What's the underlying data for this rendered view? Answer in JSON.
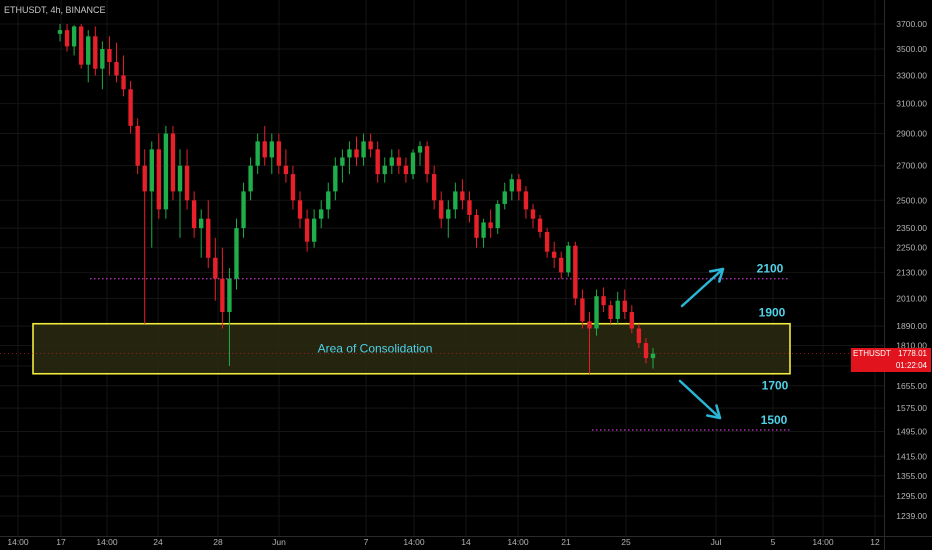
{
  "header": {
    "symbol": "ETHUSDT",
    "interval": "4h",
    "exchange": "BINANCE",
    "title": "ETHUSDT, 4h, BINANCE"
  },
  "price_tag": {
    "symbol": "ETHUSDT",
    "price": "1778.01",
    "countdown": "01:22:04",
    "color": "#e1141e"
  },
  "colors": {
    "background": "#000000",
    "up_candle": "#1fae4a",
    "down_candle": "#e8202a",
    "zone_border": "#f2ec3c",
    "zone_fill": "#2a2a12",
    "level_label": "#4fd1e8",
    "dotted_line": "#c238c9",
    "arrow": "#2ab6d6",
    "axis_text": "#b4b4b4"
  },
  "chart_data": {
    "type": "candlestick",
    "symbol": "ETHUSDT",
    "ylabel": "",
    "xlabel": "",
    "x_tick_labels": [
      "14:00",
      "17",
      "14:00",
      "24",
      "28",
      "Jun",
      "7",
      "14:00",
      "14",
      "14:00",
      "21",
      "25",
      "Jul",
      "5",
      "14:00",
      "12"
    ],
    "y_tick_labels": [
      "3700.00",
      "3500.00",
      "3300.00",
      "3100.00",
      "2900.00",
      "2700.00",
      "2500.00",
      "2350.00",
      "2250.00",
      "2130.00",
      "2010.00",
      "1890.00",
      "1810.00",
      "1730.00",
      "1655.00",
      "1575.00",
      "1495.00",
      "1415.00",
      "1355.00",
      "1295.00",
      "1239.00"
    ],
    "y_scale": "log",
    "grid": true,
    "last_price": 1778.01,
    "candles": [
      {
        "o": 3620,
        "h": 3700,
        "l": 3560,
        "c": 3650
      },
      {
        "o": 3650,
        "h": 3700,
        "l": 3480,
        "c": 3520
      },
      {
        "o": 3520,
        "h": 3690,
        "l": 3450,
        "c": 3680
      },
      {
        "o": 3680,
        "h": 3700,
        "l": 3350,
        "c": 3380
      },
      {
        "o": 3380,
        "h": 3650,
        "l": 3250,
        "c": 3600
      },
      {
        "o": 3600,
        "h": 3680,
        "l": 3300,
        "c": 3350
      },
      {
        "o": 3350,
        "h": 3560,
        "l": 3200,
        "c": 3500
      },
      {
        "o": 3500,
        "h": 3600,
        "l": 3300,
        "c": 3400
      },
      {
        "o": 3400,
        "h": 3550,
        "l": 3250,
        "c": 3300
      },
      {
        "o": 3300,
        "h": 3450,
        "l": 3150,
        "c": 3200
      },
      {
        "o": 3200,
        "h": 3260,
        "l": 2900,
        "c": 2950
      },
      {
        "o": 2950,
        "h": 3000,
        "l": 2650,
        "c": 2700
      },
      {
        "o": 2700,
        "h": 2800,
        "l": 1900,
        "c": 2550
      },
      {
        "o": 2550,
        "h": 2850,
        "l": 2250,
        "c": 2800
      },
      {
        "o": 2800,
        "h": 2900,
        "l": 2400,
        "c": 2450
      },
      {
        "o": 2450,
        "h": 2950,
        "l": 2400,
        "c": 2900
      },
      {
        "o": 2900,
        "h": 2950,
        "l": 2500,
        "c": 2550
      },
      {
        "o": 2550,
        "h": 2800,
        "l": 2300,
        "c": 2700
      },
      {
        "o": 2700,
        "h": 2800,
        "l": 2450,
        "c": 2500
      },
      {
        "o": 2500,
        "h": 2550,
        "l": 2300,
        "c": 2350
      },
      {
        "o": 2350,
        "h": 2450,
        "l": 2200,
        "c": 2400
      },
      {
        "o": 2400,
        "h": 2500,
        "l": 2150,
        "c": 2200
      },
      {
        "o": 2200,
        "h": 2300,
        "l": 2000,
        "c": 2100
      },
      {
        "o": 2100,
        "h": 2250,
        "l": 1880,
        "c": 1950
      },
      {
        "o": 1950,
        "h": 2150,
        "l": 1730,
        "c": 2100
      },
      {
        "o": 2100,
        "h": 2400,
        "l": 2050,
        "c": 2350
      },
      {
        "o": 2350,
        "h": 2600,
        "l": 2300,
        "c": 2550
      },
      {
        "o": 2550,
        "h": 2750,
        "l": 2500,
        "c": 2700
      },
      {
        "o": 2700,
        "h": 2900,
        "l": 2650,
        "c": 2850
      },
      {
        "o": 2850,
        "h": 2950,
        "l": 2700,
        "c": 2750
      },
      {
        "o": 2750,
        "h": 2900,
        "l": 2650,
        "c": 2850
      },
      {
        "o": 2850,
        "h": 2900,
        "l": 2650,
        "c": 2700
      },
      {
        "o": 2700,
        "h": 2800,
        "l": 2600,
        "c": 2650
      },
      {
        "o": 2650,
        "h": 2700,
        "l": 2450,
        "c": 2500
      },
      {
        "o": 2500,
        "h": 2550,
        "l": 2350,
        "c": 2400
      },
      {
        "o": 2400,
        "h": 2450,
        "l": 2230,
        "c": 2280
      },
      {
        "o": 2280,
        "h": 2450,
        "l": 2250,
        "c": 2400
      },
      {
        "o": 2400,
        "h": 2500,
        "l": 2350,
        "c": 2450
      },
      {
        "o": 2450,
        "h": 2600,
        "l": 2400,
        "c": 2550
      },
      {
        "o": 2550,
        "h": 2750,
        "l": 2500,
        "c": 2700
      },
      {
        "o": 2700,
        "h": 2800,
        "l": 2600,
        "c": 2750
      },
      {
        "o": 2750,
        "h": 2850,
        "l": 2650,
        "c": 2800
      },
      {
        "o": 2800,
        "h": 2880,
        "l": 2700,
        "c": 2750
      },
      {
        "o": 2750,
        "h": 2900,
        "l": 2700,
        "c": 2850
      },
      {
        "o": 2850,
        "h": 2900,
        "l": 2750,
        "c": 2800
      },
      {
        "o": 2800,
        "h": 2850,
        "l": 2600,
        "c": 2650
      },
      {
        "o": 2650,
        "h": 2750,
        "l": 2600,
        "c": 2700
      },
      {
        "o": 2700,
        "h": 2800,
        "l": 2650,
        "c": 2750
      },
      {
        "o": 2750,
        "h": 2800,
        "l": 2650,
        "c": 2700
      },
      {
        "o": 2700,
        "h": 2750,
        "l": 2600,
        "c": 2650
      },
      {
        "o": 2650,
        "h": 2800,
        "l": 2620,
        "c": 2780
      },
      {
        "o": 2780,
        "h": 2850,
        "l": 2700,
        "c": 2820
      },
      {
        "o": 2820,
        "h": 2850,
        "l": 2600,
        "c": 2650
      },
      {
        "o": 2650,
        "h": 2700,
        "l": 2450,
        "c": 2500
      },
      {
        "o": 2500,
        "h": 2550,
        "l": 2350,
        "c": 2400
      },
      {
        "o": 2400,
        "h": 2500,
        "l": 2300,
        "c": 2450
      },
      {
        "o": 2450,
        "h": 2600,
        "l": 2400,
        "c": 2550
      },
      {
        "o": 2550,
        "h": 2620,
        "l": 2450,
        "c": 2500
      },
      {
        "o": 2500,
        "h": 2550,
        "l": 2380,
        "c": 2420
      },
      {
        "o": 2420,
        "h": 2450,
        "l": 2250,
        "c": 2300
      },
      {
        "o": 2300,
        "h": 2400,
        "l": 2250,
        "c": 2380
      },
      {
        "o": 2380,
        "h": 2450,
        "l": 2300,
        "c": 2350
      },
      {
        "o": 2350,
        "h": 2500,
        "l": 2320,
        "c": 2480
      },
      {
        "o": 2480,
        "h": 2600,
        "l": 2450,
        "c": 2550
      },
      {
        "o": 2550,
        "h": 2650,
        "l": 2500,
        "c": 2620
      },
      {
        "o": 2620,
        "h": 2650,
        "l": 2500,
        "c": 2550
      },
      {
        "o": 2550,
        "h": 2580,
        "l": 2400,
        "c": 2450
      },
      {
        "o": 2450,
        "h": 2480,
        "l": 2350,
        "c": 2400
      },
      {
        "o": 2400,
        "h": 2420,
        "l": 2300,
        "c": 2330
      },
      {
        "o": 2330,
        "h": 2350,
        "l": 2200,
        "c": 2230
      },
      {
        "o": 2230,
        "h": 2280,
        "l": 2150,
        "c": 2200
      },
      {
        "o": 2200,
        "h": 2230,
        "l": 2100,
        "c": 2130
      },
      {
        "o": 2130,
        "h": 2280,
        "l": 2110,
        "c": 2260
      },
      {
        "o": 2260,
        "h": 2280,
        "l": 1980,
        "c": 2010
      },
      {
        "o": 2010,
        "h": 2050,
        "l": 1880,
        "c": 1910
      },
      {
        "o": 1910,
        "h": 1950,
        "l": 1700,
        "c": 1880
      },
      {
        "o": 1880,
        "h": 2050,
        "l": 1850,
        "c": 2020
      },
      {
        "o": 2020,
        "h": 2060,
        "l": 1950,
        "c": 1980
      },
      {
        "o": 1980,
        "h": 2000,
        "l": 1900,
        "c": 1920
      },
      {
        "o": 1920,
        "h": 2040,
        "l": 1900,
        "c": 2000
      },
      {
        "o": 2000,
        "h": 2050,
        "l": 1920,
        "c": 1950
      },
      {
        "o": 1950,
        "h": 1980,
        "l": 1860,
        "c": 1880
      },
      {
        "o": 1880,
        "h": 1900,
        "l": 1800,
        "c": 1820
      },
      {
        "o": 1820,
        "h": 1840,
        "l": 1740,
        "c": 1760
      },
      {
        "o": 1760,
        "h": 1800,
        "l": 1720,
        "c": 1778.01
      }
    ],
    "annotations": [
      {
        "type": "zone",
        "label": "Area of Consolidation",
        "from": 1700,
        "to": 1900
      },
      {
        "type": "level",
        "label": "2100",
        "value": 2100,
        "style": "dotted"
      },
      {
        "type": "level",
        "label": "1500",
        "value": 1500,
        "style": "dotted"
      },
      {
        "type": "label",
        "text": "1900",
        "value": 1900
      },
      {
        "type": "label",
        "text": "1700",
        "value": 1700
      },
      {
        "type": "arrow",
        "direction": "up",
        "target": 2100
      },
      {
        "type": "arrow",
        "direction": "down",
        "target": 1500
      }
    ]
  }
}
